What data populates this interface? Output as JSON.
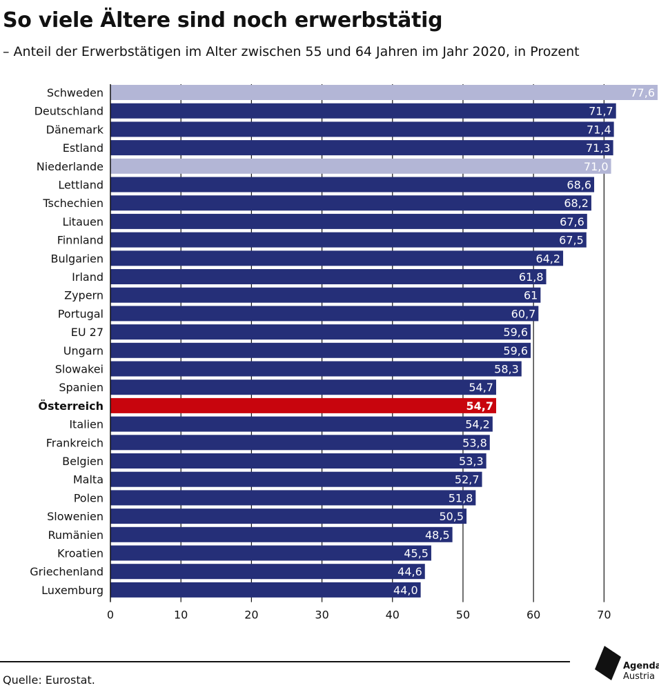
{
  "title": "So viele Ältere sind noch erwerbstätig",
  "subtitle": "– Anteil der Erwerbstätigen im Alter zwischen 55 und 64 Jahren im Jahr 2020, in Prozent",
  "source": "Quelle: Eurostat.",
  "logo": {
    "line1": "Agenda",
    "line2": "Austria"
  },
  "colors": {
    "default": "#252f78",
    "light": "#b3b6d6",
    "highlight": "#c8050d",
    "grid": "#111111",
    "axis_text": "#111111"
  },
  "chart_data": {
    "type": "bar",
    "orientation": "horizontal",
    "xlim": [
      0,
      77.6
    ],
    "xticks": [
      0,
      10,
      20,
      30,
      40,
      50,
      60,
      70
    ],
    "grid": true,
    "categories": [
      "Schweden",
      "Deutschland",
      "Dänemark",
      "Estland",
      "Niederlande",
      "Lettland",
      "Tschechien",
      "Litauen",
      "Finnland",
      "Bulgarien",
      "Irland",
      "Zypern",
      "Portugal",
      "EU 27",
      "Ungarn",
      "Slowakei",
      "Spanien",
      "Österreich",
      "Italien",
      "Frankreich",
      "Belgien",
      "Malta",
      "Polen",
      "Slowenien",
      "Rumänien",
      "Kroatien",
      "Griechenland",
      "Luxemburg"
    ],
    "values": [
      77.6,
      71.7,
      71.4,
      71.3,
      71.0,
      68.6,
      68.2,
      67.6,
      67.5,
      64.2,
      61.8,
      61,
      60.7,
      59.6,
      59.6,
      58.3,
      54.7,
      54.7,
      54.2,
      53.8,
      53.3,
      52.7,
      51.8,
      50.5,
      48.5,
      45.5,
      44.6,
      44.0
    ],
    "labels": [
      "77,6",
      "71,7",
      "71,4",
      "71,3",
      "71,0",
      "68,6",
      "68,2",
      "67,6",
      "67,5",
      "64,2",
      "61,8",
      "61",
      "60,7",
      "59,6",
      "59,6",
      "58,3",
      "54,7",
      "54,7",
      "54,2",
      "53,8",
      "53,3",
      "52,7",
      "51,8",
      "50,5",
      "48,5",
      "45,5",
      "44,6",
      "44,0"
    ],
    "bar_styles": [
      "light",
      "default",
      "default",
      "default",
      "light",
      "default",
      "default",
      "default",
      "default",
      "default",
      "default",
      "default",
      "default",
      "default",
      "default",
      "default",
      "default",
      "highlight",
      "default",
      "default",
      "default",
      "default",
      "default",
      "default",
      "default",
      "default",
      "default",
      "default"
    ]
  }
}
